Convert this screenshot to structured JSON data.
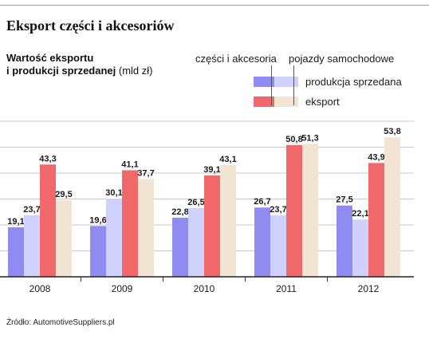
{
  "chart_data": {
    "type": "bar",
    "title": "Eksport części i akcesoriów",
    "subtitle_line1": "Wartość eksportu",
    "subtitle_line2": "i produkcji sprzedanej",
    "unit": "(mld zł)",
    "categories": [
      "2008",
      "2009",
      "2010",
      "2011",
      "2012"
    ],
    "series": [
      {
        "name": "części i akcesoria – produkcja sprzedana",
        "values": [
          19.1,
          19.6,
          22.8,
          26.7,
          27.5
        ],
        "color": "#8f8bf0"
      },
      {
        "name": "pojazdy samochodowe – produkcja sprzedana",
        "values": [
          23.7,
          30.1,
          26.5,
          23.7,
          22.1
        ],
        "color": "#cfd0fb"
      },
      {
        "name": "części i akcesoria – eksport",
        "values": [
          43.3,
          41.1,
          39.1,
          50.8,
          43.9
        ],
        "color": "#f0686a"
      },
      {
        "name": "pojazdy samochodowe – eksport",
        "values": [
          29.5,
          37.7,
          43.1,
          51.3,
          53.8
        ],
        "color": "#f1e4d2"
      }
    ],
    "labels": [
      [
        "19,1",
        "19,6",
        "22,8",
        "26,7",
        "27,5"
      ],
      [
        "23,7",
        "30,1",
        "26,5",
        "23,7",
        "22,1"
      ],
      [
        "43,3",
        "41,1",
        "39,1",
        "50,8",
        "43,9"
      ],
      [
        "29,5",
        "37,7",
        "43,1",
        "51,3",
        "53,8"
      ]
    ],
    "legend": {
      "col1": "części i akcesoria",
      "col2": "pojazdy samochodowe",
      "row1": "produkcja sprzedana",
      "row2": "eksport"
    },
    "ylim": [
      0,
      60
    ],
    "grid": true,
    "source": "Źródło: AutomotiveSuppliers.pl"
  }
}
